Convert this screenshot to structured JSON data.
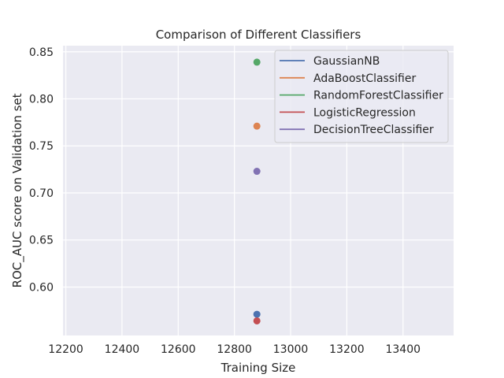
{
  "chart_data": {
    "type": "scatter",
    "title": "Comparison of Different Classifiers",
    "xlabel": "Training Size",
    "ylabel": "ROC_AUC score on Validation set",
    "xlim": [
      12190,
      13580
    ],
    "ylim": [
      0.5485,
      0.8565
    ],
    "xticks": [
      12200,
      12400,
      12600,
      12800,
      13000,
      13200,
      13400
    ],
    "yticks": [
      0.6,
      0.65,
      0.7,
      0.75,
      0.8,
      0.85
    ],
    "xtick_labels": [
      "12200",
      "12400",
      "12600",
      "12800",
      "13000",
      "13200",
      "13400"
    ],
    "ytick_labels": [
      "0.60",
      "0.65",
      "0.70",
      "0.75",
      "0.80",
      "0.85"
    ],
    "grid": true,
    "legend_position": "top-right",
    "series": [
      {
        "name": "GaussianNB",
        "color": "#4c72b0",
        "x": [
          12880
        ],
        "y": [
          0.571
        ]
      },
      {
        "name": "AdaBoostClassifier",
        "color": "#dd8452",
        "x": [
          12880
        ],
        "y": [
          0.771
        ]
      },
      {
        "name": "RandomForestClassifier",
        "color": "#55a868",
        "x": [
          12880
        ],
        "y": [
          0.839
        ]
      },
      {
        "name": "LogisticRegression",
        "color": "#c44e52",
        "x": [
          12880
        ],
        "y": [
          0.564
        ]
      },
      {
        "name": "DecisionTreeClassifier",
        "color": "#8172b3",
        "x": [
          12880
        ],
        "y": [
          0.723
        ]
      }
    ]
  }
}
